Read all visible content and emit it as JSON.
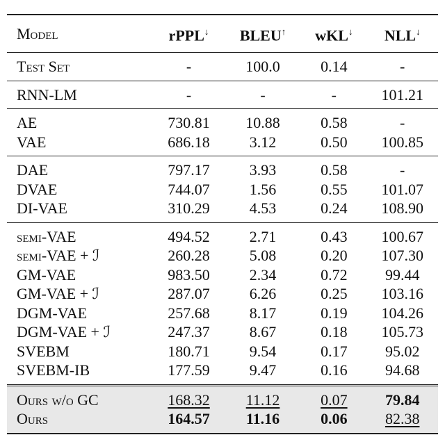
{
  "table": {
    "header": [
      "Model",
      {
        "name": "rPPL",
        "arrow": "↓"
      },
      {
        "name": "BLEU",
        "arrow": "↑"
      },
      {
        "name": "wKL",
        "arrow": "↓"
      },
      {
        "name": "NLL",
        "arrow": "↓"
      }
    ],
    "groups": [
      {
        "shaded": false,
        "rows": [
          {
            "cells": [
              "Test Set",
              "-",
              "100.0",
              "0.14",
              "-"
            ],
            "smallcaps": true,
            "bold": [],
            "underline": []
          }
        ]
      },
      {
        "shaded": false,
        "rows": [
          {
            "cells": [
              "RNN-LM",
              "-",
              "-",
              "-",
              "101.21"
            ],
            "smallcaps": false,
            "bold": [],
            "underline": []
          }
        ]
      },
      {
        "shaded": false,
        "rows": [
          {
            "cells": [
              "AE",
              "730.81",
              "10.88",
              "0.58",
              "-"
            ],
            "smallcaps": false,
            "bold": [],
            "underline": []
          },
          {
            "cells": [
              "VAE",
              "686.18",
              "3.12",
              "0.50",
              "100.85"
            ],
            "smallcaps": false,
            "bold": [],
            "underline": []
          }
        ]
      },
      {
        "shaded": false,
        "rows": [
          {
            "cells": [
              "DAE",
              "797.17",
              "3.93",
              "0.58",
              "-"
            ],
            "smallcaps": false,
            "bold": [],
            "underline": []
          },
          {
            "cells": [
              "DVAE",
              "744.07",
              "1.56",
              "0.55",
              "101.07"
            ],
            "smallcaps": false,
            "bold": [],
            "underline": []
          },
          {
            "cells": [
              "DI-VAE",
              "310.29",
              "4.53",
              "0.24",
              "108.90"
            ],
            "smallcaps": false,
            "bold": [],
            "underline": []
          }
        ]
      },
      {
        "shaded": false,
        "rows": [
          {
            "cells": [
              "semi-VAE",
              "494.52",
              "2.71",
              "0.43",
              "100.67"
            ],
            "smallcaps": true,
            "bold": [],
            "underline": []
          },
          {
            "cells": [
              "semi-VAE + ℐ",
              "260.28",
              "5.08",
              "0.20",
              "107.30"
            ],
            "smallcaps": true,
            "bold": [],
            "underline": []
          },
          {
            "cells": [
              "GM-VAE",
              "983.50",
              "2.34",
              "0.72",
              "99.44"
            ],
            "smallcaps": false,
            "bold": [],
            "underline": []
          },
          {
            "cells": [
              "GM-VAE + ℐ",
              "287.07",
              "6.26",
              "0.25",
              "103.16"
            ],
            "smallcaps": false,
            "bold": [],
            "underline": []
          },
          {
            "cells": [
              "DGM-VAE",
              "257.68",
              "8.17",
              "0.19",
              "104.26"
            ],
            "smallcaps": false,
            "bold": [],
            "underline": []
          },
          {
            "cells": [
              "DGM-VAE + ℐ",
              "247.37",
              "8.67",
              "0.18",
              "105.73"
            ],
            "smallcaps": false,
            "bold": [],
            "underline": []
          },
          {
            "cells": [
              "SVEBM",
              "180.71",
              "9.54",
              "0.17",
              "95.02"
            ],
            "smallcaps": false,
            "bold": [],
            "underline": []
          },
          {
            "cells": [
              "SVEBM-IB",
              "177.59",
              "9.47",
              "0.16",
              "94.68"
            ],
            "smallcaps": false,
            "bold": [],
            "underline": []
          }
        ]
      },
      {
        "shaded": true,
        "rows": [
          {
            "cells": [
              "Ours w/o GC",
              "168.32",
              "11.12",
              "0.07",
              "79.84"
            ],
            "smallcaps": true,
            "bold": [
              4
            ],
            "underline": [
              1,
              2,
              3
            ]
          },
          {
            "cells": [
              "Ours",
              "164.57",
              "11.16",
              "0.06",
              "82.38"
            ],
            "smallcaps": true,
            "bold": [
              1,
              2,
              3
            ],
            "underline": [
              4
            ]
          }
        ]
      }
    ]
  }
}
